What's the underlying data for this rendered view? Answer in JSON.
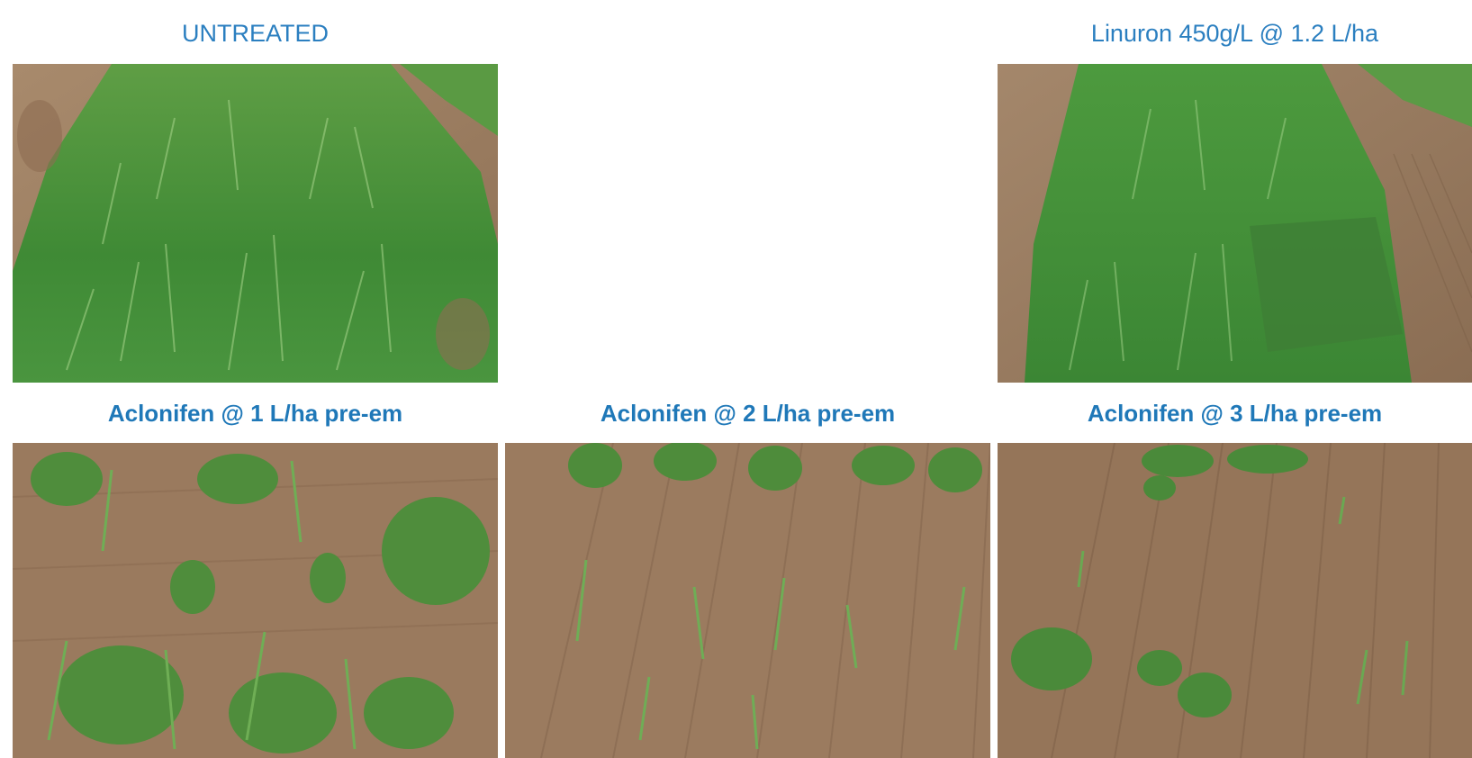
{
  "panels": {
    "untreated": {
      "caption": "UNTREATED"
    },
    "linuron": {
      "caption": "Linuron 450g/L @ 1.2 L/ha"
    },
    "aclonifen_1": {
      "caption": "Aclonifen @ 1 L/ha pre-em"
    },
    "aclonifen_2": {
      "caption": "Aclonifen @ 2 L/ha pre-em"
    },
    "aclonifen_3": {
      "caption": "Aclonifen @ 3 L/ha pre-em"
    }
  },
  "colors": {
    "caption_blue": "#1f78b8",
    "soil": "#9c7b5e",
    "grass": "#4f8f3a"
  }
}
